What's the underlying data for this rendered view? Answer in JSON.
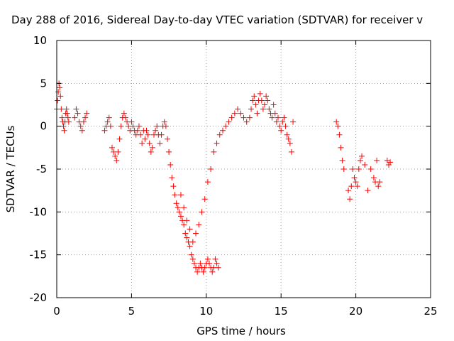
{
  "chart_data": {
    "type": "scatter",
    "title": "Day 288 of 2016, Sidereal Day-to-day VTEC variation (SDTVAR) for receiver v",
    "xlabel": "GPS time / hours",
    "ylabel": "SDTVAR / TECUs",
    "xlim": [
      0,
      25
    ],
    "ylim": [
      -20,
      10
    ],
    "xticks": [
      0,
      5,
      10,
      15,
      20,
      25
    ],
    "yticks": [
      -20,
      -15,
      -10,
      -5,
      0,
      5,
      10
    ],
    "grid": true,
    "marker": "plus",
    "marker_color": "#ff0000",
    "series": [
      {
        "x": [
          0.0,
          0.05,
          0.1,
          0.15,
          0.2,
          0.25,
          0.3,
          0.35,
          0.4,
          0.45,
          0.5,
          0.55,
          0.6,
          0.65,
          0.7,
          0.75,
          0.8,
          1.2,
          1.3,
          1.4,
          1.5,
          1.6,
          1.7,
          1.8,
          1.9,
          2.0,
          3.2,
          3.3,
          3.4,
          3.5,
          3.6,
          3.7,
          3.8,
          3.9,
          4.0,
          4.1,
          4.2,
          4.3,
          4.4,
          4.5,
          4.6,
          4.7,
          4.8,
          4.9,
          5.0,
          5.1,
          5.2,
          5.3,
          5.4,
          5.5,
          5.6,
          5.7,
          5.8,
          5.9,
          6.0,
          6.1,
          6.2,
          6.3,
          6.4,
          6.5,
          6.6,
          6.7,
          6.8,
          6.9,
          7.0,
          7.1,
          7.2,
          7.3,
          7.4,
          7.5,
          7.6,
          7.7,
          7.8,
          7.9,
          8.0,
          8.1,
          8.2,
          8.3,
          8.4,
          8.5,
          8.6,
          8.7,
          8.8,
          8.9,
          9.0,
          9.1,
          9.2,
          9.3,
          9.4,
          9.5,
          9.6,
          9.7,
          9.8,
          9.9,
          10.0,
          10.1,
          10.2,
          10.3,
          10.4,
          10.5,
          10.6,
          10.7,
          10.8,
          8.3,
          8.5,
          8.7,
          8.9,
          9.1,
          9.3,
          9.5,
          9.7,
          9.9,
          10.1,
          10.3,
          10.5,
          10.7,
          10.9,
          11.1,
          11.3,
          11.5,
          11.7,
          11.9,
          12.1,
          12.3,
          12.5,
          12.7,
          12.9,
          13.0,
          13.1,
          13.2,
          13.3,
          13.4,
          13.5,
          13.6,
          13.7,
          13.8,
          13.9,
          14.0,
          14.1,
          14.2,
          14.3,
          14.4,
          14.5,
          14.6,
          14.7,
          14.8,
          14.9,
          15.0,
          15.1,
          15.2,
          15.3,
          15.4,
          15.5,
          15.6,
          15.7,
          15.8,
          18.7,
          18.8,
          18.9,
          19.0,
          19.1,
          19.2,
          19.5,
          19.6,
          19.7,
          19.8,
          19.9,
          20.0,
          20.1,
          20.2,
          20.3,
          20.4,
          20.6,
          20.8,
          21.0,
          21.2,
          21.3,
          21.4,
          21.5,
          21.6,
          22.1,
          22.2,
          22.3
        ],
        "y": [
          2.0,
          3.0,
          4.0,
          5.0,
          4.5,
          3.5,
          2.0,
          1.0,
          0.5,
          0.0,
          -0.5,
          0.5,
          1.5,
          2.0,
          1.5,
          1.0,
          0.5,
          1.0,
          2.0,
          1.5,
          0.5,
          0.0,
          -0.5,
          0.5,
          1.0,
          1.5,
          -0.5,
          0.0,
          0.5,
          1.0,
          0.0,
          -2.5,
          -3.0,
          -3.5,
          -4.0,
          -3.0,
          -1.5,
          0.0,
          1.0,
          1.5,
          1.0,
          0.5,
          0.0,
          -0.5,
          0.5,
          0.0,
          -0.5,
          -1.0,
          -0.5,
          0.0,
          -1.0,
          -2.0,
          -0.5,
          -1.5,
          -0.5,
          -1.0,
          -2.0,
          -3.0,
          -2.5,
          -1.0,
          -0.5,
          0.0,
          -1.0,
          -2.0,
          -1.0,
          0.0,
          0.5,
          0.0,
          -1.5,
          -3.0,
          -4.5,
          -6.0,
          -7.0,
          -8.0,
          -9.0,
          -9.5,
          -10.0,
          -10.5,
          -11.0,
          -11.5,
          -12.5,
          -13.0,
          -13.5,
          -14.0,
          -15.0,
          -15.5,
          -16.0,
          -16.5,
          -17.0,
          -16.5,
          -16.0,
          -16.5,
          -17.0,
          -16.5,
          -16.0,
          -15.5,
          -16.0,
          -16.5,
          -17.0,
          -16.5,
          -15.5,
          -16.0,
          -16.5,
          -8.0,
          -9.5,
          -11.0,
          -12.0,
          -13.5,
          -12.5,
          -11.5,
          -10.0,
          -8.5,
          -6.5,
          -5.0,
          -3.0,
          -2.0,
          -1.0,
          -0.5,
          0.0,
          0.5,
          1.0,
          1.5,
          2.0,
          1.5,
          1.0,
          0.5,
          1.0,
          2.0,
          3.0,
          3.5,
          2.5,
          1.5,
          3.0,
          3.8,
          3.0,
          2.0,
          2.5,
          3.5,
          3.0,
          2.0,
          1.5,
          1.0,
          2.5,
          1.5,
          0.5,
          1.0,
          0.0,
          -0.5,
          0.5,
          1.0,
          0.0,
          -1.0,
          -1.5,
          -2.0,
          -3.0,
          0.5,
          0.5,
          0.0,
          -1.0,
          -2.5,
          -4.0,
          -5.0,
          -7.5,
          -8.5,
          -7.0,
          -5.0,
          -6.0,
          -6.5,
          -7.0,
          -5.0,
          -4.0,
          -3.5,
          -4.5,
          -7.5,
          -5.0,
          -6.0,
          -6.5,
          -4.0,
          -7.0,
          -6.5,
          -4.0,
          -4.5,
          -4.2
        ]
      }
    ]
  }
}
